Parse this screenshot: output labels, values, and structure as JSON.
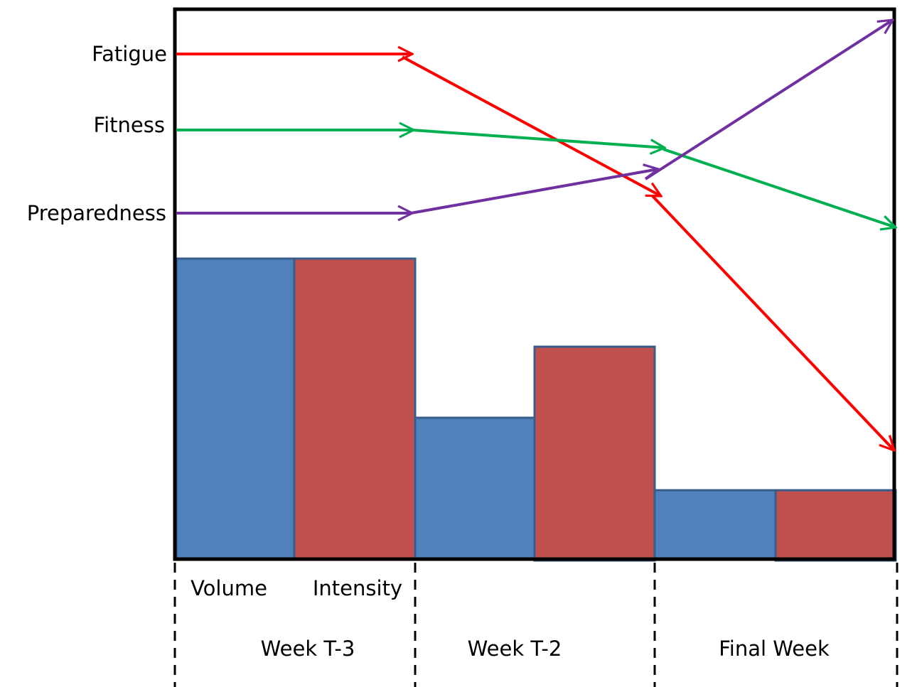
{
  "lines": [
    {
      "label": "Fatigue"
    },
    {
      "label": "Fitness"
    },
    {
      "label": "Preparedness"
    }
  ],
  "series": [
    "Volume",
    "Intensity"
  ],
  "weeks": [
    "Week T-3",
    "Week T-2",
    "Final Week"
  ]
}
